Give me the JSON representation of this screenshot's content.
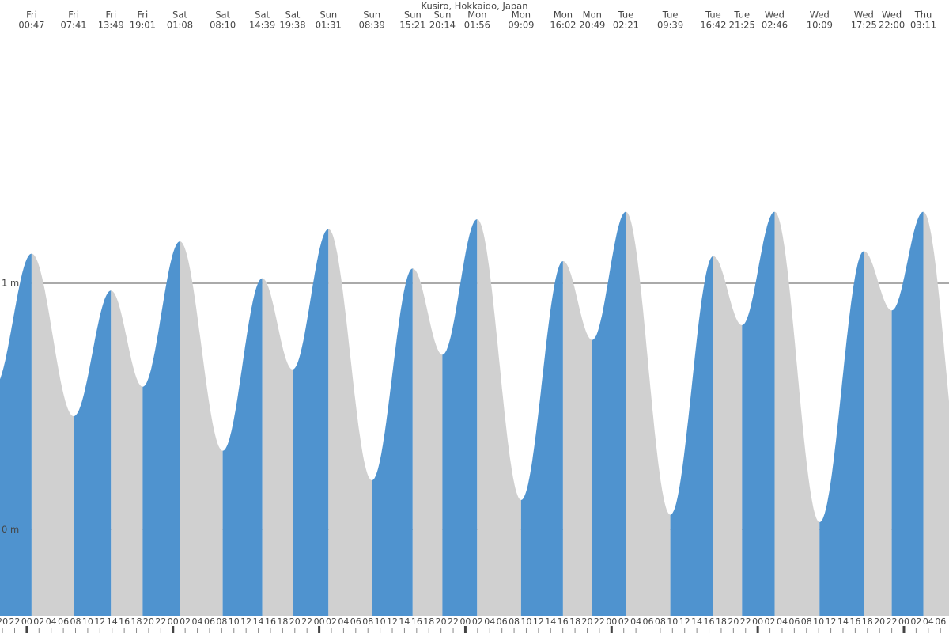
{
  "chart_data": {
    "type": "tide",
    "title": "Kusiro, Hokkaido, Japan",
    "days": [
      "Fri",
      "Fri",
      "Fri",
      "Fri",
      "Sat",
      "Sat",
      "Sat",
      "Sat",
      "Sun",
      "Sun",
      "Sun",
      "Sun",
      "Mon",
      "Mon",
      "Mon",
      "Mon",
      "Tue",
      "Tue",
      "Tue",
      "Tue",
      "Wed",
      "Wed",
      "Wed",
      "Wed",
      "Thu"
    ],
    "times": [
      "00:47",
      "07:41",
      "13:49",
      "19:01",
      "01:08",
      "08:10",
      "14:39",
      "19:38",
      "01:31",
      "08:39",
      "15:21",
      "20:14",
      "01:56",
      "09:09",
      "16:02",
      "20:49",
      "02:21",
      "09:39",
      "16:42",
      "21:25",
      "02:46",
      "10:09",
      "17:25",
      "22:00",
      "03:11"
    ],
    "values": [
      1.12,
      0.46,
      0.97,
      0.58,
      1.17,
      0.32,
      1.02,
      0.65,
      1.22,
      0.2,
      1.06,
      0.71,
      1.26,
      0.12,
      1.09,
      0.77,
      1.29,
      0.06,
      1.11,
      0.83,
      1.29,
      0.03,
      1.13,
      0.89,
      1.29
    ],
    "colors": {
      "rising": "#4f93cf",
      "falling": "#d0d0d0"
    },
    "ylim": [
      -0.42,
      2.15
    ],
    "yticks": [
      {
        "value": 0,
        "label": "0 m"
      },
      {
        "value": 1,
        "label": "1 m"
      }
    ],
    "xlim": [
      -4.4,
      151.4
    ],
    "xticks": [
      {
        "value": -4,
        "label": "20"
      },
      {
        "value": -2,
        "label": "22"
      },
      {
        "value": 0,
        "label": "00"
      },
      {
        "value": 2,
        "label": "02"
      },
      {
        "value": 4,
        "label": "04"
      },
      {
        "value": 6,
        "label": "06"
      },
      {
        "value": 8,
        "label": "08"
      },
      {
        "value": 10,
        "label": "10"
      },
      {
        "value": 12,
        "label": "12"
      },
      {
        "value": 14,
        "label": "14"
      },
      {
        "value": 16,
        "label": "16"
      },
      {
        "value": 18,
        "label": "18"
      },
      {
        "value": 20,
        "label": "20"
      },
      {
        "value": 22,
        "label": "22"
      },
      {
        "value": 24,
        "label": "00"
      },
      {
        "value": 26,
        "label": "02"
      },
      {
        "value": 28,
        "label": "04"
      },
      {
        "value": 30,
        "label": "06"
      },
      {
        "value": 32,
        "label": "08"
      },
      {
        "value": 34,
        "label": "10"
      },
      {
        "value": 36,
        "label": "12"
      },
      {
        "value": 38,
        "label": "14"
      },
      {
        "value": 40,
        "label": "16"
      },
      {
        "value": 42,
        "label": "18"
      },
      {
        "value": 44,
        "label": "20"
      },
      {
        "value": 46,
        "label": "22"
      },
      {
        "value": 48,
        "label": "00"
      },
      {
        "value": 50,
        "label": "02"
      },
      {
        "value": 52,
        "label": "04"
      },
      {
        "value": 54,
        "label": "06"
      },
      {
        "value": 56,
        "label": "08"
      },
      {
        "value": 58,
        "label": "10"
      },
      {
        "value": 60,
        "label": "12"
      },
      {
        "value": 62,
        "label": "14"
      },
      {
        "value": 64,
        "label": "16"
      },
      {
        "value": 66,
        "label": "18"
      },
      {
        "value": 68,
        "label": "20"
      },
      {
        "value": 70,
        "label": "22"
      },
      {
        "value": 72,
        "label": "00"
      },
      {
        "value": 74,
        "label": "02"
      },
      {
        "value": 76,
        "label": "04"
      },
      {
        "value": 78,
        "label": "06"
      },
      {
        "value": 80,
        "label": "08"
      },
      {
        "value": 82,
        "label": "10"
      },
      {
        "value": 84,
        "label": "12"
      },
      {
        "value": 86,
        "label": "14"
      },
      {
        "value": 88,
        "label": "16"
      },
      {
        "value": 90,
        "label": "18"
      },
      {
        "value": 92,
        "label": "20"
      },
      {
        "value": 94,
        "label": "22"
      },
      {
        "value": 96,
        "label": "00"
      },
      {
        "value": 98,
        "label": "02"
      },
      {
        "value": 100,
        "label": "04"
      },
      {
        "value": 102,
        "label": "06"
      },
      {
        "value": 104,
        "label": "08"
      },
      {
        "value": 106,
        "label": "10"
      },
      {
        "value": 108,
        "label": "12"
      },
      {
        "value": 110,
        "label": "14"
      },
      {
        "value": 112,
        "label": "16"
      },
      {
        "value": 114,
        "label": "18"
      },
      {
        "value": 116,
        "label": "20"
      },
      {
        "value": 118,
        "label": "22"
      },
      {
        "value": 120,
        "label": "00"
      },
      {
        "value": 122,
        "label": "02"
      },
      {
        "value": 124,
        "label": "04"
      },
      {
        "value": 126,
        "label": "06"
      },
      {
        "value": 128,
        "label": "08"
      },
      {
        "value": 130,
        "label": "10"
      },
      {
        "value": 132,
        "label": "12"
      },
      {
        "value": 134,
        "label": "14"
      },
      {
        "value": 136,
        "label": "16"
      },
      {
        "value": 138,
        "label": "18"
      },
      {
        "value": 140,
        "label": "20"
      },
      {
        "value": 142,
        "label": "22"
      },
      {
        "value": 144,
        "label": "00"
      },
      {
        "value": 146,
        "label": "02"
      },
      {
        "value": 148,
        "label": "04"
      },
      {
        "value": 150,
        "label": "06"
      }
    ]
  }
}
